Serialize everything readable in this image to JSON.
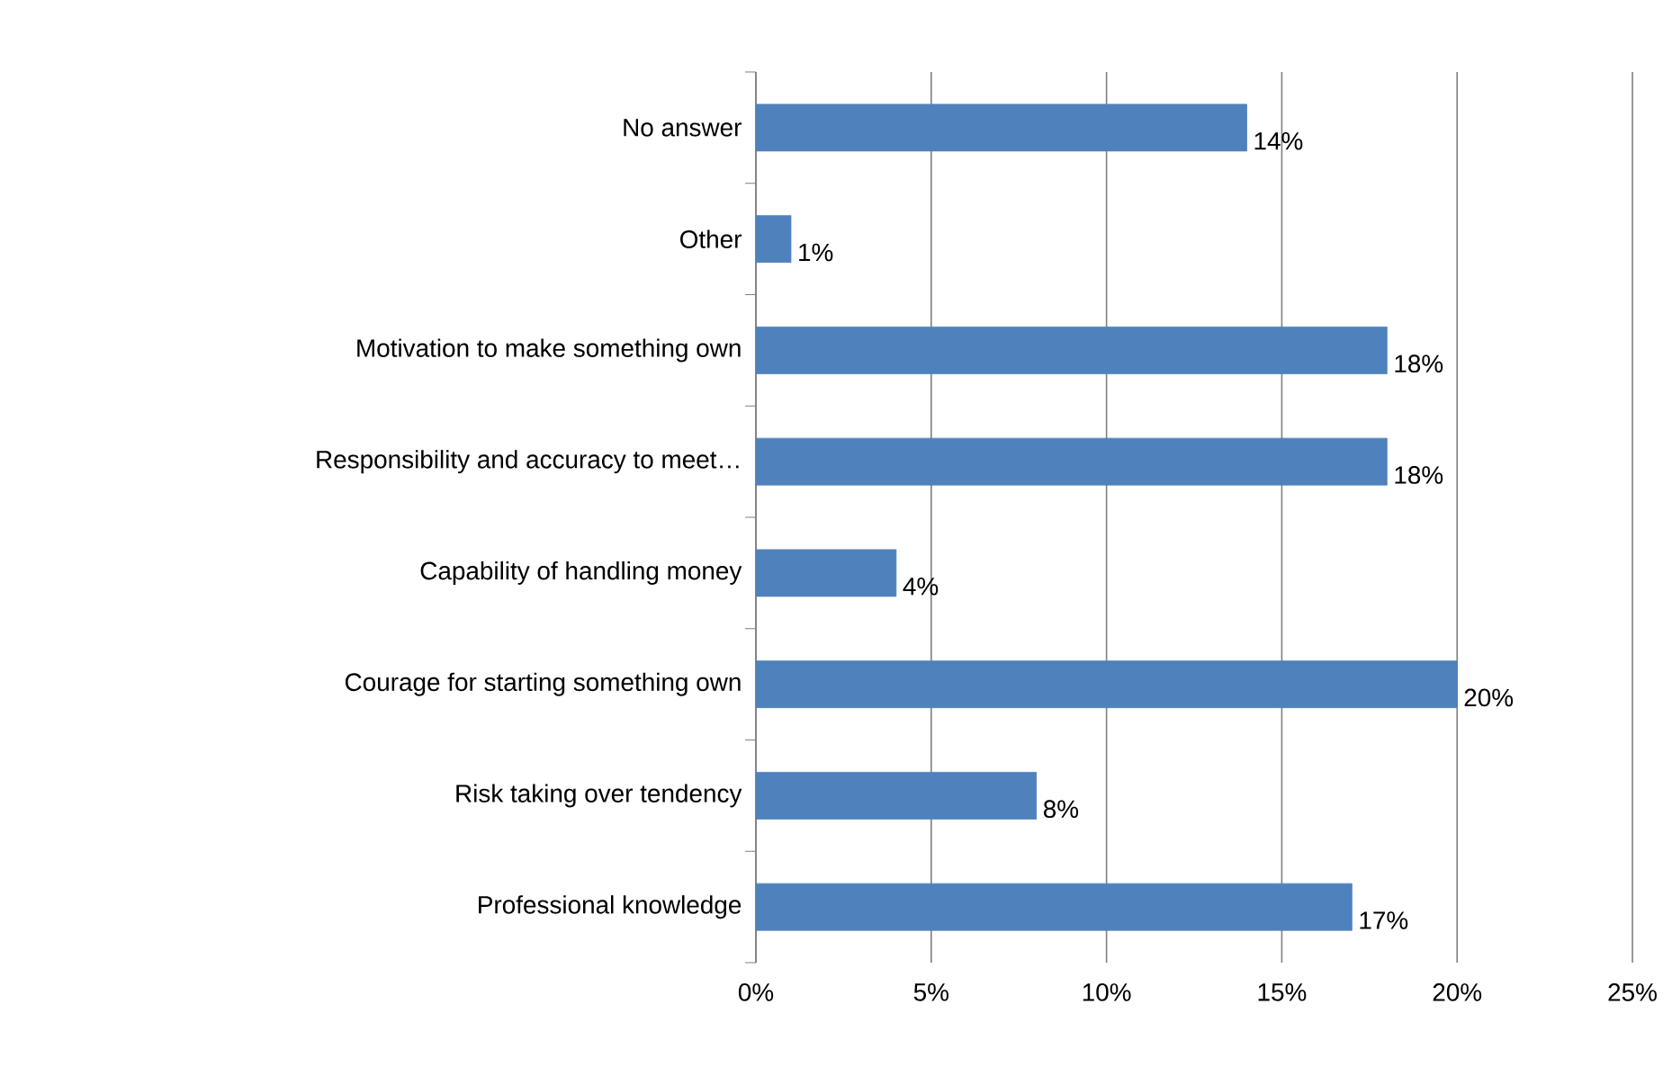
{
  "chart_data": {
    "type": "bar",
    "orientation": "horizontal",
    "categories": [
      "No answer",
      "Other",
      "Motivation to make something own",
      "Responsibility and accuracy to meet…",
      "Capability of handling money",
      "Courage for starting something own",
      "Risk taking over tendency",
      "Professional knowledge"
    ],
    "values": [
      14,
      1,
      18,
      18,
      4,
      20,
      8,
      17
    ],
    "value_labels": [
      "14%",
      "1%",
      "18%",
      "18%",
      "4%",
      "20%",
      "8%",
      "17%"
    ],
    "color": "#4f81bd",
    "xlim": [
      0,
      25
    ],
    "xticks": [
      {
        "value": 0,
        "label": "0%"
      },
      {
        "value": 5,
        "label": "5%"
      },
      {
        "value": 10,
        "label": "10%"
      },
      {
        "value": 15,
        "label": "15%"
      },
      {
        "value": 20,
        "label": "20%"
      },
      {
        "value": 25,
        "label": "25%"
      }
    ],
    "grid": "x"
  }
}
